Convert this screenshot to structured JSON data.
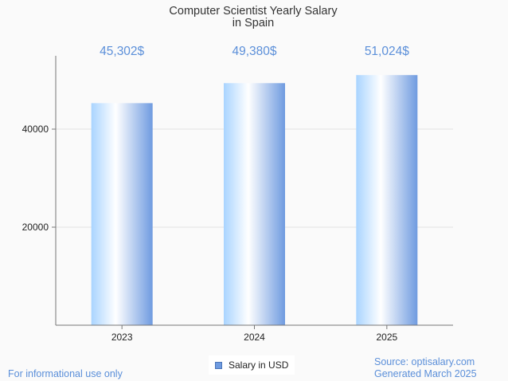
{
  "chart_data": {
    "type": "bar",
    "title": [
      "Computer Scientist Yearly Salary",
      "in Spain"
    ],
    "categories": [
      "2023",
      "2024",
      "2025"
    ],
    "series": [
      {
        "name": "Salary in USD",
        "values": [
          45302,
          49380,
          51024
        ],
        "color": "#6f9be0"
      }
    ],
    "data_labels": [
      "45,302$",
      "49,380$",
      "51,024$"
    ],
    "yticks": [
      20000,
      40000
    ],
    "ylim": [
      0,
      55000
    ],
    "grid": true,
    "legend": "bottom-center"
  },
  "footer": {
    "disclaimer": "For informational use only",
    "source": "Source: optisalary.com",
    "generated": "Generated March 2025"
  }
}
